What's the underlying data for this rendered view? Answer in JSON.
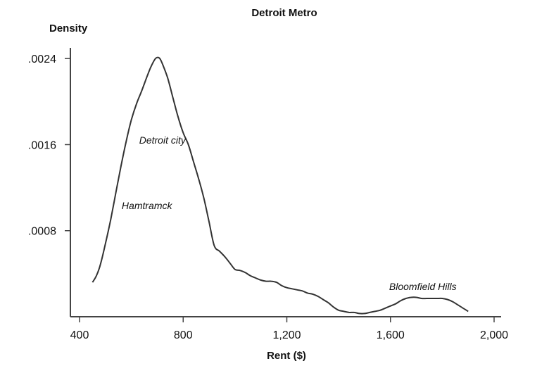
{
  "chart_data": {
    "type": "line",
    "title": "Detroit Metro",
    "ylabel": "Density",
    "xlabel": "Rent ($)",
    "xlim": [
      400,
      2000
    ],
    "ylim": [
      0,
      0.00265
    ],
    "x_ticks": [
      {
        "value": 400,
        "label": "400"
      },
      {
        "value": 800,
        "label": "800"
      },
      {
        "value": 1200,
        "label": "1,200"
      },
      {
        "value": 1600,
        "label": "1,600"
      },
      {
        "value": 2000,
        "label": "2,000"
      }
    ],
    "y_ticks": [
      {
        "value": 0.0008,
        "label": ".0008"
      },
      {
        "value": 0.0016,
        "label": ".0016"
      },
      {
        "value": 0.0024,
        "label": ".0024"
      }
    ],
    "grid": false,
    "legend": "none",
    "series": [
      {
        "x": [
          450,
          465,
          480,
          500,
          520,
          540,
          560,
          580,
          600,
          620,
          640,
          660,
          675,
          690,
          700,
          710,
          720,
          740,
          760,
          780,
          800,
          820,
          840,
          860,
          880,
          900,
          920,
          940,
          960,
          980,
          1000,
          1020,
          1040,
          1060,
          1080,
          1100,
          1120,
          1140,
          1160,
          1180,
          1200,
          1220,
          1240,
          1260,
          1280,
          1300,
          1320,
          1340,
          1360,
          1380,
          1400,
          1420,
          1440,
          1460,
          1480,
          1500,
          1520,
          1540,
          1560,
          1580,
          1600,
          1620,
          1640,
          1660,
          1680,
          1700,
          1720,
          1740,
          1760,
          1780,
          1800,
          1820,
          1840,
          1860,
          1880,
          1900
        ],
        "y": [
          0.00032,
          0.00038,
          0.00048,
          0.00068,
          0.0009,
          0.00115,
          0.0014,
          0.00163,
          0.00183,
          0.00198,
          0.0021,
          0.00223,
          0.00232,
          0.00239,
          0.00241,
          0.0024,
          0.00235,
          0.00222,
          0.00204,
          0.00186,
          0.00171,
          0.0016,
          0.00144,
          0.00128,
          0.0011,
          0.00088,
          0.00066,
          0.00061,
          0.00056,
          0.0005,
          0.00044,
          0.00043,
          0.00041,
          0.00038,
          0.00036,
          0.00034,
          0.00033,
          0.00033,
          0.00032,
          0.00029,
          0.00027,
          0.00026,
          0.00025,
          0.00024,
          0.00022,
          0.00021,
          0.00019,
          0.00016,
          0.00013,
          9e-05,
          6e-05,
          5e-05,
          4e-05,
          4e-05,
          3e-05,
          3e-05,
          4e-05,
          5e-05,
          6e-05,
          8e-05,
          0.0001,
          0.00012,
          0.00015,
          0.00017,
          0.00018,
          0.00018,
          0.00017,
          0.00017,
          0.00017,
          0.00017,
          0.00017,
          0.00016,
          0.00014,
          0.00011,
          8e-05,
          5e-05
        ]
      }
    ],
    "annotations": [
      {
        "text": "Detroit city",
        "x": 720,
        "y": 0.00161
      },
      {
        "text": "Hamtramck",
        "x": 660,
        "y": 0.001
      },
      {
        "text": "Bloomfield Hills",
        "x": 1725,
        "y": 0.00025
      }
    ]
  }
}
